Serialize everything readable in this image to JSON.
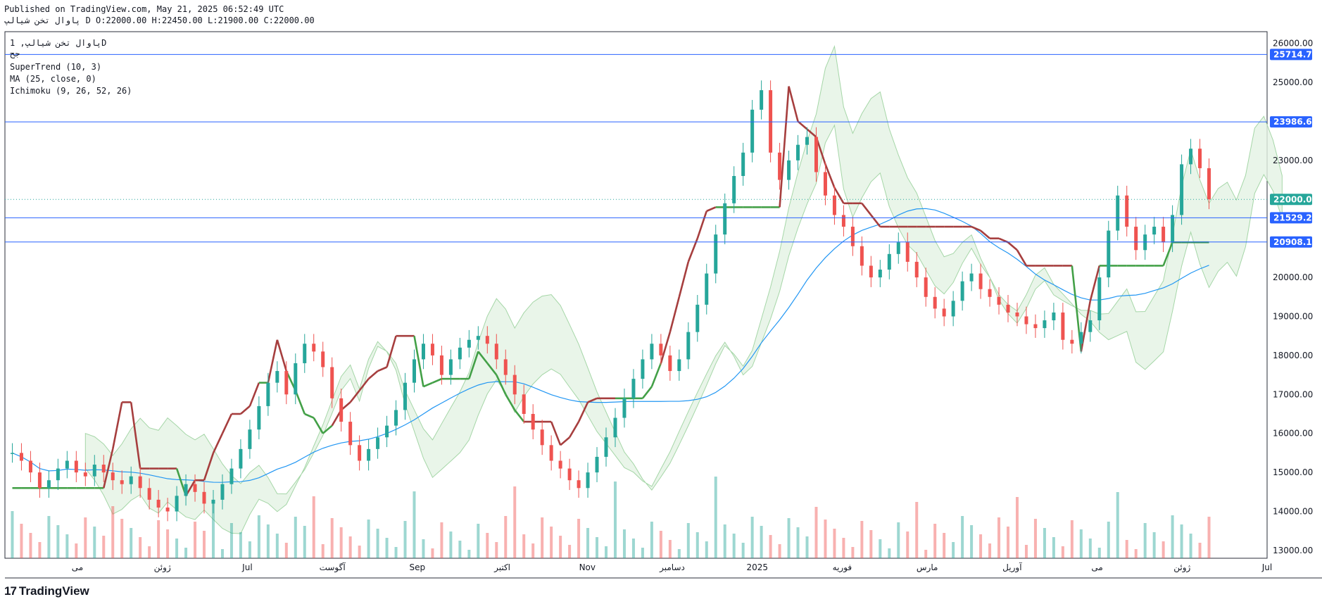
{
  "header": {
    "published": "Published on TradingView.com, May 21, 2025 06:52:49 UTC",
    "ohlc": "پاوال تخن شیالپ D O:22000.00 H:22450.00 L:21900.00 C:22000.00"
  },
  "legend": {
    "symbol": "پاوال تخن شیالپ, 1D",
    "sub": "جح",
    "indicators": [
      "SuperTrend (10, 3)",
      "MA (25, close, 0)",
      "Ichimoku (9, 26, 52, 26)"
    ]
  },
  "footer": {
    "brand": "TradingView",
    "logo_mark": "17"
  },
  "colors": {
    "up": "#26a69a",
    "down": "#ef5350",
    "supertrend_up": "#43a047",
    "supertrend_down": "#a63e3e",
    "ma": "#2196f3",
    "hline": "#2962ff",
    "cloud_green": "#e3f2e3",
    "cloud_red": "#fde4e4"
  },
  "chart_data": {
    "type": "candlestick",
    "ylim": [
      12800,
      26300
    ],
    "y_ticks": [
      13000,
      14000,
      15000,
      16000,
      17000,
      18000,
      19000,
      20000,
      25000,
      26000
    ],
    "x_labels": [
      "می",
      "ژوئن",
      "Jul",
      "آگوست",
      "Sep",
      "اکتبر",
      "Nov",
      "دسامبر",
      "2025",
      "فوریه",
      "مارس",
      "آوریل",
      "می",
      "ژوئن",
      "Jul"
    ],
    "horizontal_lines": [
      25714.76,
      23986.66,
      21529.23,
      20908.1
    ],
    "last_price": 22000.0,
    "price_labels": [
      "25714.76",
      "23986.66",
      "22000.00",
      "21529.23",
      "20908.10"
    ],
    "price_axis_labels": [
      "26000.00",
      "25000.00",
      "23000.00",
      "20000.00",
      "19000.00",
      "18000.00",
      "17000.00",
      "16000.00",
      "15000.00",
      "14000.00",
      "13000.00"
    ],
    "close_series": [
      15500,
      15300,
      15000,
      14600,
      14800,
      15100,
      15300,
      15000,
      14900,
      15200,
      15000,
      14800,
      14700,
      14900,
      14600,
      14300,
      14100,
      14000,
      14400,
      14700,
      14500,
      14200,
      14300,
      14700,
      15100,
      15600,
      16100,
      16700,
      17300,
      17600,
      17000,
      17800,
      18300,
      18100,
      17700,
      16900,
      16300,
      15700,
      15300,
      15600,
      15900,
      16200,
      16600,
      17300,
      17900,
      18300,
      18000,
      17500,
      17900,
      18200,
      18400,
      18500,
      18300,
      17900,
      17500,
      17000,
      16500,
      16100,
      15700,
      15300,
      15100,
      14800,
      14600,
      15000,
      15400,
      15900,
      16400,
      16900,
      17400,
      17900,
      18300,
      18000,
      17600,
      17900,
      18600,
      19300,
      20100,
      21100,
      21900,
      22600,
      23200,
      24300,
      24800,
      23200,
      22500,
      23000,
      23400,
      23600,
      22700,
      22100,
      21600,
      21300,
      20800,
      20300,
      20000,
      20200,
      20600,
      20900,
      20400,
      20000,
      19500,
      19200,
      19000,
      19400,
      19900,
      20100,
      19700,
      19500,
      19300,
      19100,
      19000,
      18800,
      18700,
      18900,
      19100,
      18400,
      18300,
      18600,
      18900,
      20000,
      21200,
      22100,
      21300,
      20700,
      21100,
      21300,
      20900,
      21600,
      22900,
      23300,
      22800,
      22000
    ],
    "supertrend": [
      14600,
      14600,
      14600,
      14600,
      14600,
      14600,
      14600,
      14600,
      14600,
      14600,
      14600,
      15600,
      16800,
      16800,
      15100,
      15100,
      15100,
      15100,
      15100,
      14400,
      14800,
      14800,
      15500,
      16000,
      16500,
      16500,
      16700,
      17300,
      17300,
      18400,
      17600,
      17100,
      16500,
      16400,
      16000,
      16200,
      16600,
      16800,
      17100,
      17400,
      17600,
      17700,
      18500,
      18500,
      18500,
      17200,
      17300,
      17400,
      17400,
      17400,
      17400,
      18100,
      17800,
      17500,
      17000,
      16600,
      16300,
      16300,
      16300,
      16300,
      15700,
      15900,
      16300,
      16800,
      16900,
      16900,
      16900,
      16900,
      16900,
      16900,
      17200,
      17800,
      18600,
      19500,
      20400,
      21000,
      21700,
      21800,
      21800,
      21800,
      21800,
      21800,
      21800,
      21800,
      21800,
      24900,
      24000,
      23800,
      23600,
      22900,
      22300,
      21900,
      21900,
      21900,
      21600,
      21300,
      21300,
      21300,
      21300,
      21300,
      21300,
      21300,
      21300,
      21300,
      21300,
      21300,
      21200,
      21000,
      21000,
      20900,
      20700,
      20300,
      20300,
      20300,
      20300,
      20300,
      20300,
      18100,
      19400,
      20300,
      20300,
      20300,
      20300,
      20300,
      20300,
      20300,
      20300,
      20900,
      20900,
      20900,
      20900,
      20900
    ]
  }
}
